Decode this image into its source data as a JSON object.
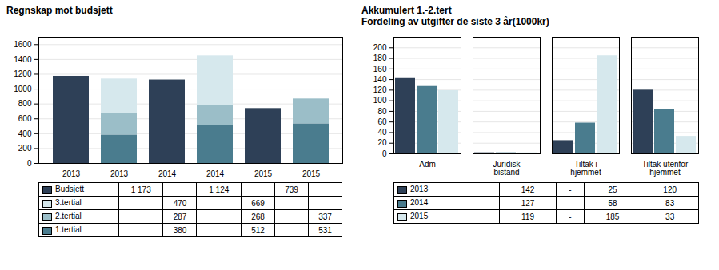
{
  "chart_data": [
    {
      "type": "bar",
      "title": "Regnskap mot budsjett",
      "stacked": true,
      "categories": [
        "2013",
        "2013",
        "2014",
        "2014",
        "2015",
        "2015"
      ],
      "series": [
        {
          "name": "Budsjett",
          "color": "#2e4057",
          "values": [
            1173,
            0,
            1124,
            0,
            739,
            0
          ],
          "value_labels": [
            "1 173",
            null,
            "1 124",
            null,
            "739",
            null
          ]
        },
        {
          "name": "3.tertial",
          "color": "#d6e8ed",
          "values": [
            0,
            470,
            0,
            669,
            0,
            0
          ],
          "value_labels": [
            null,
            "470",
            null,
            "669",
            null,
            "-"
          ]
        },
        {
          "name": "2.tertial",
          "color": "#9bbec8",
          "values": [
            0,
            287,
            0,
            268,
            0,
            337
          ],
          "value_labels": [
            null,
            "287",
            null,
            "268",
            null,
            "337"
          ]
        },
        {
          "name": "1.tertial",
          "color": "#4a7c8e",
          "values": [
            0,
            380,
            0,
            512,
            0,
            531
          ],
          "value_labels": [
            null,
            "380",
            null,
            "512",
            null,
            "531"
          ]
        }
      ],
      "ylim": [
        0,
        1700
      ],
      "yticks": [
        0,
        200,
        400,
        600,
        800,
        1000,
        1200,
        1400,
        1600
      ],
      "grid": true
    },
    {
      "type": "bar",
      "title": "Akkumulert 1.-2.tert\nFordeling av utgifter de siste 3 år(1000kr)",
      "categories": [
        "Adm",
        "Juridisk\nbistand",
        "Tiltak i\nhjemmet",
        "Tiltak utenfor\nhjemmet"
      ],
      "series": [
        {
          "name": "2013",
          "color": "#2e4057",
          "values": [
            142,
            2,
            25,
            120
          ],
          "value_labels": [
            "142",
            "-",
            "25",
            "120"
          ]
        },
        {
          "name": "2014",
          "color": "#4a7c8e",
          "values": [
            127,
            2,
            58,
            83
          ],
          "value_labels": [
            "127",
            "-",
            "58",
            "83"
          ]
        },
        {
          "name": "2015",
          "color": "#d6e8ed",
          "values": [
            119,
            2,
            185,
            33
          ],
          "value_labels": [
            "119",
            "-",
            "185",
            "33"
          ]
        }
      ],
      "ylim": [
        0,
        220
      ],
      "yticks": [
        0,
        20,
        40,
        60,
        80,
        100,
        120,
        140,
        160,
        180,
        200
      ],
      "grid": true
    }
  ]
}
